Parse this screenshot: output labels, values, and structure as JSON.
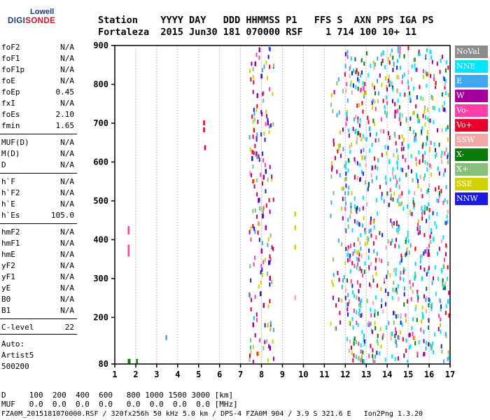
{
  "logo": {
    "top": "Lowell",
    "main_prefix": "DIGI",
    "main_suffix": "SONDE"
  },
  "header": {
    "line1": "Station    YYYY DAY   DDD HHMMSS P1   FFS S  AXN PPS IGA PS",
    "line2": "Fortaleza  2015 Jun30 181 070000 RSF    1 714 100 10+ 11"
  },
  "params": [
    {
      "label": "foF2",
      "value": "N/A"
    },
    {
      "label": "foF1",
      "value": "N/A"
    },
    {
      "label": "foF1p",
      "value": "N/A"
    },
    {
      "label": "foE",
      "value": "N/A"
    },
    {
      "label": "foEp",
      "value": "0.45"
    },
    {
      "label": "fxI",
      "value": "N/A"
    },
    {
      "label": "foEs",
      "value": "2.10"
    },
    {
      "label": "fmin",
      "value": "1.65"
    },
    {
      "label": "MUF(D)",
      "value": "N/A"
    },
    {
      "label": "M(D)",
      "value": "N/A"
    },
    {
      "label": "D",
      "value": "N/A"
    },
    {
      "label": "h`F",
      "value": "N/A"
    },
    {
      "label": "h`F2",
      "value": "N/A"
    },
    {
      "label": "h`E",
      "value": "N/A"
    },
    {
      "label": "h`Es",
      "value": "105.0"
    },
    {
      "label": "hmF2",
      "value": "N/A"
    },
    {
      "label": "hmF1",
      "value": "N/A"
    },
    {
      "label": "hmE",
      "value": "N/A"
    },
    {
      "label": "yF2",
      "value": "N/A"
    },
    {
      "label": "yF1",
      "value": "N/A"
    },
    {
      "label": "yE",
      "value": "N/A"
    },
    {
      "label": "B0",
      "value": "N/A"
    },
    {
      "label": "B1",
      "value": "N/A"
    },
    {
      "label": "C-level",
      "value": "22"
    }
  ],
  "auto": {
    "line1": "Auto:",
    "line2": "Artist5",
    "line3": "500200"
  },
  "legend": [
    {
      "label": "NoVal",
      "color": "#8c8c8c"
    },
    {
      "label": "NNE",
      "color": "#00e5ff"
    },
    {
      "label": "E",
      "color": "#40a8f0"
    },
    {
      "label": "W",
      "color": "#a6009c"
    },
    {
      "label": "Vo-",
      "color": "#ff3fa8"
    },
    {
      "label": "Vo+",
      "color": "#e8002a"
    },
    {
      "label": "SSW",
      "color": "#f2a7a7"
    },
    {
      "label": "X-",
      "color": "#0a7a0a"
    },
    {
      "label": "X+",
      "color": "#86c07a"
    },
    {
      "label": "SSE",
      "color": "#d2d200"
    },
    {
      "label": "NNW",
      "color": "#1a1ae0"
    }
  ],
  "bottom": {
    "d_line": "D     100  200  400  600   800 1000 1500 3000 [km]",
    "muf_line": "MUF   0.0  0.0  0.0  0.0   0.0  0.0  0.0  0.0 [MHz]",
    "footer": "FZA0M_2015181070000.RSF / 320fx256h 50 kHz 5.0 km / DPS-4 FZA0M 904 / 3.9 S 321.6 E   Ion2Png 1.3.20"
  },
  "chart_data": {
    "type": "scatter",
    "xlabel": "",
    "ylabel": "",
    "xlim": [
      1,
      17
    ],
    "ylim": [
      80,
      900
    ],
    "x_ticks": [
      1,
      2,
      3,
      4,
      5,
      6,
      7,
      8,
      9,
      10,
      11,
      12,
      13,
      14,
      15,
      16,
      17
    ],
    "y_ticks": [
      80,
      200,
      300,
      400,
      500,
      600,
      700,
      800,
      900
    ],
    "grid": "vertical",
    "legend_position": "right",
    "series": [
      {
        "name": "Vo-",
        "points": [
          [
            1.65,
            428
          ],
          [
            1.65,
            419
          ],
          [
            1.65,
            380
          ],
          [
            1.65,
            372
          ],
          [
            1.65,
            362
          ]
        ]
      },
      {
        "name": "X-",
        "points": [
          [
            1.65,
            86
          ],
          [
            1.7,
            86
          ],
          [
            2.05,
            86
          ]
        ]
      },
      {
        "name": "E",
        "points": [
          [
            3.45,
            147
          ]
        ]
      },
      {
        "name": "Vo+",
        "points": [
          [
            5.25,
            700
          ],
          [
            5.25,
            682
          ],
          [
            5.3,
            636
          ]
        ]
      },
      {
        "name": "W",
        "points": [
          [
            7.9,
            888
          ],
          [
            7.7,
            852
          ],
          [
            8.0,
            820
          ],
          [
            7.8,
            770
          ],
          [
            8.3,
            700
          ],
          [
            7.75,
            620
          ],
          [
            8.1,
            560
          ],
          [
            7.85,
            500
          ],
          [
            8.2,
            430
          ],
          [
            8.0,
            370
          ],
          [
            8.4,
            300
          ],
          [
            8.1,
            230
          ],
          [
            7.6,
            180
          ],
          [
            8.4,
            120
          ]
        ]
      },
      {
        "name": "NNW",
        "points": [
          [
            7.55,
            608
          ],
          [
            8.2,
            575
          ],
          [
            8.05,
            460
          ],
          [
            8.35,
            340
          ],
          [
            7.95,
            260
          ]
        ]
      },
      {
        "name": "SSW",
        "points": [
          [
            7.45,
            570
          ],
          [
            9.6,
            250
          ]
        ]
      },
      {
        "name": "SSE",
        "points": [
          [
            9.6,
            465
          ],
          [
            9.6,
            430
          ],
          [
            9.6,
            380
          ],
          [
            12.8,
            610
          ]
        ]
      },
      {
        "name": "NNE",
        "points": [
          [
            13.8,
            880
          ],
          [
            14.2,
            800
          ],
          [
            14.6,
            720
          ],
          [
            15.0,
            640
          ],
          [
            15.4,
            560
          ],
          [
            15.8,
            480
          ],
          [
            16.2,
            400
          ],
          [
            16.6,
            320
          ],
          [
            16.9,
            240
          ],
          [
            14.1,
            600
          ],
          [
            14.5,
            500
          ],
          [
            14.9,
            400
          ],
          [
            15.3,
            300
          ],
          [
            15.7,
            200
          ],
          [
            16.1,
            120
          ]
        ]
      }
    ]
  }
}
